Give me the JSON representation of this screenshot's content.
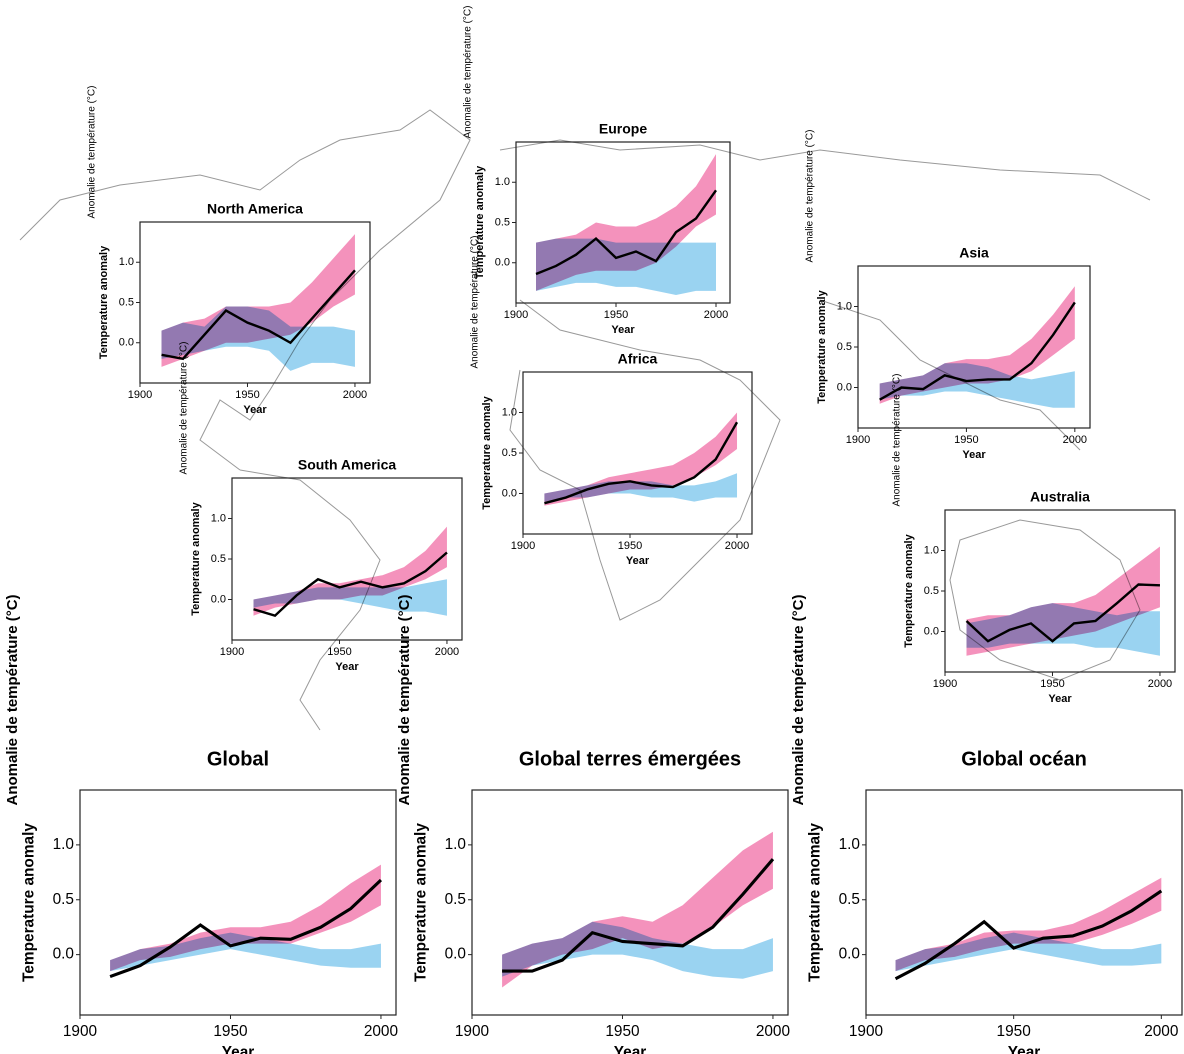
{
  "chart_data": [
    {
      "type": "line",
      "title": "North America",
      "xlabel": "Year",
      "ylabel": "Temperature anomaly",
      "ylabel_alt": "Anomalie de température (°C)",
      "x": [
        1910,
        1920,
        1930,
        1940,
        1950,
        1960,
        1970,
        1980,
        1990,
        2000
      ],
      "xlim": [
        1900,
        2007
      ],
      "ylim": [
        -0.5,
        1.5
      ],
      "xticks": [
        1900,
        1950,
        2000
      ],
      "yticks": [
        {
          "value": 0,
          "label": "0.0"
        },
        {
          "value": 0.5,
          "label": "0.5"
        },
        {
          "value": 1,
          "label": "1.0"
        }
      ],
      "series": [
        {
          "color": "#000000",
          "values": [
            -0.15,
            -0.2,
            0.1,
            0.4,
            0.25,
            0.15,
            0.0,
            0.3,
            0.6,
            0.9
          ]
        }
      ],
      "bands": [
        {
          "color": "#f06ea6",
          "lower": [
            -0.3,
            -0.2,
            -0.1,
            0.0,
            0.0,
            0.05,
            0.1,
            0.25,
            0.45,
            0.6
          ],
          "upper": [
            0.15,
            0.25,
            0.3,
            0.45,
            0.45,
            0.45,
            0.5,
            0.75,
            1.05,
            1.35
          ]
        },
        {
          "color": "#78c4ec",
          "lower": [
            -0.2,
            -0.15,
            -0.1,
            -0.05,
            -0.05,
            -0.1,
            -0.35,
            -0.25,
            -0.25,
            -0.3
          ],
          "upper": [
            0.15,
            0.25,
            0.2,
            0.45,
            0.45,
            0.4,
            0.2,
            0.2,
            0.2,
            0.15
          ]
        }
      ]
    },
    {
      "type": "line",
      "title": "Europe",
      "xlabel": "Year",
      "ylabel": "Temperature anomaly",
      "ylabel_alt": "Anomalie de température (°C)",
      "x": [
        1910,
        1920,
        1930,
        1940,
        1950,
        1960,
        1970,
        1980,
        1990,
        2000
      ],
      "xlim": [
        1900,
        2007
      ],
      "ylim": [
        -0.5,
        1.5
      ],
      "xticks": [
        1900,
        1950,
        2000
      ],
      "yticks": [
        {
          "value": 0,
          "label": "0.0"
        },
        {
          "value": 0.5,
          "label": "0.5"
        },
        {
          "value": 1,
          "label": "1.0"
        }
      ],
      "series": [
        {
          "color": "#000000",
          "values": [
            -0.14,
            -0.04,
            0.1,
            0.3,
            0.06,
            0.14,
            0.02,
            0.38,
            0.55,
            0.9
          ]
        }
      ],
      "bands": [
        {
          "color": "#f06ea6",
          "lower": [
            -0.35,
            -0.25,
            -0.15,
            -0.1,
            -0.1,
            -0.1,
            0.0,
            0.2,
            0.45,
            0.6
          ],
          "upper": [
            0.25,
            0.3,
            0.35,
            0.5,
            0.45,
            0.45,
            0.55,
            0.7,
            0.95,
            1.35
          ]
        },
        {
          "color": "#78c4ec",
          "lower": [
            -0.35,
            -0.3,
            -0.25,
            -0.25,
            -0.3,
            -0.3,
            -0.35,
            -0.4,
            -0.35,
            -0.35
          ],
          "upper": [
            0.25,
            0.3,
            0.3,
            0.3,
            0.25,
            0.25,
            0.25,
            0.25,
            0.25,
            0.25
          ]
        }
      ]
    },
    {
      "type": "line",
      "title": "Asia",
      "xlabel": "Year",
      "ylabel": "Temperature anomaly",
      "ylabel_alt": "Anomalie de température (°C)",
      "x": [
        1910,
        1920,
        1930,
        1940,
        1950,
        1960,
        1970,
        1980,
        1990,
        2000
      ],
      "xlim": [
        1900,
        2007
      ],
      "ylim": [
        -0.5,
        1.5
      ],
      "xticks": [
        1900,
        1950,
        2000
      ],
      "yticks": [
        {
          "value": 0,
          "label": "0.0"
        },
        {
          "value": 0.5,
          "label": "0.5"
        },
        {
          "value": 1,
          "label": "1.0"
        }
      ],
      "series": [
        {
          "color": "#000000",
          "values": [
            -0.15,
            0.0,
            -0.02,
            0.15,
            0.08,
            0.1,
            0.1,
            0.3,
            0.65,
            1.05
          ]
        }
      ],
      "bands": [
        {
          "color": "#f06ea6",
          "lower": [
            -0.2,
            -0.1,
            -0.05,
            0.0,
            0.05,
            0.05,
            0.1,
            0.2,
            0.4,
            0.6
          ],
          "upper": [
            0.05,
            0.1,
            0.15,
            0.3,
            0.35,
            0.35,
            0.4,
            0.6,
            0.9,
            1.25
          ]
        },
        {
          "color": "#78c4ec",
          "lower": [
            -0.15,
            -0.1,
            -0.1,
            -0.05,
            -0.05,
            -0.1,
            -0.15,
            -0.2,
            -0.25,
            -0.25
          ],
          "upper": [
            0.05,
            0.1,
            0.15,
            0.3,
            0.3,
            0.25,
            0.15,
            0.1,
            0.15,
            0.2
          ]
        }
      ]
    },
    {
      "type": "line",
      "title": "Africa",
      "xlabel": "Year",
      "ylabel": "Temperature anomaly",
      "ylabel_alt": "Anomalie de température (°C)",
      "x": [
        1910,
        1920,
        1930,
        1940,
        1950,
        1960,
        1970,
        1980,
        1990,
        2000
      ],
      "xlim": [
        1900,
        2007
      ],
      "ylim": [
        -0.5,
        1.5
      ],
      "xticks": [
        1900,
        1950,
        2000
      ],
      "yticks": [
        {
          "value": 0,
          "label": "0.0"
        },
        {
          "value": 0.5,
          "label": "0.5"
        },
        {
          "value": 1,
          "label": "1.0"
        }
      ],
      "series": [
        {
          "color": "#000000",
          "values": [
            -0.12,
            -0.05,
            0.05,
            0.12,
            0.15,
            0.1,
            0.08,
            0.2,
            0.42,
            0.88
          ]
        }
      ],
      "bands": [
        {
          "color": "#f06ea6",
          "lower": [
            -0.15,
            -0.1,
            -0.05,
            0.0,
            0.05,
            0.05,
            0.1,
            0.2,
            0.35,
            0.55
          ],
          "upper": [
            0.0,
            0.05,
            0.1,
            0.2,
            0.25,
            0.3,
            0.35,
            0.5,
            0.7,
            1.0
          ]
        },
        {
          "color": "#78c4ec",
          "lower": [
            -0.1,
            -0.05,
            -0.05,
            0.0,
            0.0,
            -0.05,
            -0.05,
            -0.1,
            -0.05,
            -0.05
          ],
          "upper": [
            0.0,
            0.05,
            0.1,
            0.15,
            0.15,
            0.15,
            0.1,
            0.1,
            0.15,
            0.25
          ]
        }
      ]
    },
    {
      "type": "line",
      "title": "South America",
      "xlabel": "Year",
      "ylabel": "Temperature anomaly",
      "ylabel_alt": "Anomalie de température (°C)",
      "x": [
        1910,
        1920,
        1930,
        1940,
        1950,
        1960,
        1970,
        1980,
        1990,
        2000
      ],
      "xlim": [
        1900,
        2007
      ],
      "ylim": [
        -0.5,
        1.5
      ],
      "xticks": [
        1900,
        1950,
        2000
      ],
      "yticks": [
        {
          "value": 0,
          "label": "0.0"
        },
        {
          "value": 0.5,
          "label": "0.5"
        },
        {
          "value": 1,
          "label": "1.0"
        }
      ],
      "series": [
        {
          "color": "#000000",
          "values": [
            -0.12,
            -0.2,
            0.05,
            0.25,
            0.15,
            0.22,
            0.15,
            0.2,
            0.35,
            0.58
          ]
        }
      ],
      "bands": [
        {
          "color": "#f06ea6",
          "lower": [
            -0.2,
            -0.1,
            -0.05,
            0.0,
            0.0,
            0.05,
            0.05,
            0.15,
            0.25,
            0.4
          ],
          "upper": [
            0.0,
            0.05,
            0.1,
            0.2,
            0.2,
            0.25,
            0.3,
            0.4,
            0.6,
            0.9
          ]
        },
        {
          "color": "#78c4ec",
          "lower": [
            -0.1,
            -0.05,
            -0.05,
            0.0,
            0.0,
            -0.05,
            -0.1,
            -0.15,
            -0.15,
            -0.2
          ],
          "upper": [
            0.0,
            0.05,
            0.1,
            0.15,
            0.15,
            0.15,
            0.15,
            0.15,
            0.2,
            0.25
          ]
        }
      ]
    },
    {
      "type": "line",
      "title": "Australia",
      "xlabel": "Year",
      "ylabel": "Temperature anomaly",
      "ylabel_alt": "Anomalie de température (°C)",
      "x": [
        1910,
        1920,
        1930,
        1940,
        1950,
        1960,
        1970,
        1980,
        1990,
        2000
      ],
      "xlim": [
        1900,
        2007
      ],
      "ylim": [
        -0.5,
        1.5
      ],
      "xticks": [
        1900,
        1950,
        2000
      ],
      "yticks": [
        {
          "value": 0,
          "label": "0.0"
        },
        {
          "value": 0.5,
          "label": "0.5"
        },
        {
          "value": 1,
          "label": "1.0"
        }
      ],
      "series": [
        {
          "color": "#000000",
          "values": [
            0.13,
            -0.12,
            0.02,
            0.1,
            -0.12,
            0.1,
            0.13,
            0.35,
            0.58,
            0.57
          ]
        }
      ],
      "bands": [
        {
          "color": "#f06ea6",
          "lower": [
            -0.3,
            -0.25,
            -0.2,
            -0.15,
            -0.1,
            -0.05,
            0.0,
            0.1,
            0.2,
            0.3
          ],
          "upper": [
            0.15,
            0.2,
            0.2,
            0.3,
            0.35,
            0.35,
            0.45,
            0.65,
            0.85,
            1.05
          ]
        },
        {
          "color": "#78c4ec",
          "lower": [
            -0.2,
            -0.2,
            -0.15,
            -0.15,
            -0.15,
            -0.15,
            -0.2,
            -0.2,
            -0.25,
            -0.3
          ],
          "upper": [
            0.1,
            0.15,
            0.2,
            0.3,
            0.35,
            0.3,
            0.25,
            0.2,
            0.25,
            0.25
          ]
        }
      ]
    },
    {
      "type": "line",
      "title": "Global",
      "xlabel": "Year",
      "ylabel": "Temperature anomaly",
      "ylabel_alt": "Anomalie de température (°C)",
      "x": [
        1910,
        1920,
        1930,
        1940,
        1950,
        1960,
        1970,
        1980,
        1990,
        2000
      ],
      "xlim": [
        1900,
        2005
      ],
      "ylim": [
        -0.55,
        1.5
      ],
      "xticks": [
        1900,
        1950,
        2000
      ],
      "yticks": [
        {
          "value": 0,
          "label": "0.0"
        },
        {
          "value": 0.5,
          "label": "0.5"
        },
        {
          "value": 1,
          "label": "1.0"
        }
      ],
      "series": [
        {
          "color": "#000000",
          "values": [
            -0.2,
            -0.1,
            0.07,
            0.27,
            0.08,
            0.15,
            0.14,
            0.25,
            0.42,
            0.68
          ]
        }
      ],
      "bands": [
        {
          "color": "#f06ea6",
          "lower": [
            -0.15,
            -0.05,
            -0.02,
            0.05,
            0.1,
            0.1,
            0.1,
            0.2,
            0.3,
            0.45
          ],
          "upper": [
            -0.05,
            0.05,
            0.1,
            0.2,
            0.25,
            0.25,
            0.3,
            0.45,
            0.65,
            0.82
          ]
        },
        {
          "color": "#78c4ec",
          "lower": [
            -0.15,
            -0.1,
            -0.05,
            0.0,
            0.05,
            0.0,
            -0.05,
            -0.1,
            -0.12,
            -0.12
          ],
          "upper": [
            -0.05,
            0.05,
            0.08,
            0.15,
            0.2,
            0.15,
            0.1,
            0.05,
            0.05,
            0.1
          ]
        }
      ]
    },
    {
      "type": "line",
      "title": "Global terres émergées",
      "xlabel": "Year",
      "ylabel": "Temperature anomaly",
      "ylabel_alt": "Anomalie de température (°C)",
      "x": [
        1910,
        1920,
        1930,
        1940,
        1950,
        1960,
        1970,
        1980,
        1990,
        2000
      ],
      "xlim": [
        1900,
        2005
      ],
      "ylim": [
        -0.55,
        1.5
      ],
      "xticks": [
        1900,
        1950,
        2000
      ],
      "yticks": [
        {
          "value": 0,
          "label": "0.0"
        },
        {
          "value": 0.5,
          "label": "0.5"
        },
        {
          "value": 1,
          "label": "1.0"
        }
      ],
      "series": [
        {
          "color": "#000000",
          "values": [
            -0.15,
            -0.15,
            -0.05,
            0.2,
            0.12,
            0.1,
            0.08,
            0.25,
            0.55,
            0.87
          ]
        }
      ],
      "bands": [
        {
          "color": "#f06ea6",
          "lower": [
            -0.3,
            -0.1,
            0.0,
            0.05,
            0.15,
            0.05,
            0.1,
            0.25,
            0.45,
            0.6
          ],
          "upper": [
            0.0,
            0.1,
            0.15,
            0.3,
            0.35,
            0.3,
            0.45,
            0.7,
            0.95,
            1.12
          ]
        },
        {
          "color": "#78c4ec",
          "lower": [
            -0.2,
            -0.1,
            -0.05,
            0.0,
            0.0,
            -0.05,
            -0.15,
            -0.2,
            -0.22,
            -0.15
          ],
          "upper": [
            0.0,
            0.1,
            0.15,
            0.3,
            0.25,
            0.15,
            0.1,
            0.05,
            0.05,
            0.15
          ]
        }
      ]
    },
    {
      "type": "line",
      "title": "Global océan",
      "xlabel": "Year",
      "ylabel": "Temperature anomaly",
      "ylabel_alt": "Anomalie de température (°C)",
      "x": [
        1910,
        1920,
        1930,
        1940,
        1950,
        1960,
        1970,
        1980,
        1990,
        2000
      ],
      "xlim": [
        1900,
        2007
      ],
      "ylim": [
        -0.55,
        1.5
      ],
      "xticks": [
        1900,
        1950,
        2000
      ],
      "yticks": [
        {
          "value": 0,
          "label": "0.0"
        },
        {
          "value": 0.5,
          "label": "0.5"
        },
        {
          "value": 1,
          "label": "1.0"
        }
      ],
      "series": [
        {
          "color": "#000000",
          "values": [
            -0.22,
            -0.08,
            0.1,
            0.3,
            0.06,
            0.15,
            0.17,
            0.26,
            0.4,
            0.58
          ]
        }
      ],
      "bands": [
        {
          "color": "#f06ea6",
          "lower": [
            -0.15,
            -0.05,
            -0.02,
            0.05,
            0.1,
            0.1,
            0.1,
            0.18,
            0.28,
            0.4
          ],
          "upper": [
            -0.05,
            0.05,
            0.1,
            0.2,
            0.22,
            0.22,
            0.28,
            0.4,
            0.55,
            0.7
          ]
        },
        {
          "color": "#78c4ec",
          "lower": [
            -0.15,
            -0.1,
            -0.05,
            0.0,
            0.05,
            0.0,
            -0.05,
            -0.1,
            -0.1,
            -0.08
          ],
          "upper": [
            -0.05,
            0.05,
            0.08,
            0.15,
            0.2,
            0.15,
            0.1,
            0.05,
            0.05,
            0.1
          ]
        }
      ]
    }
  ]
}
